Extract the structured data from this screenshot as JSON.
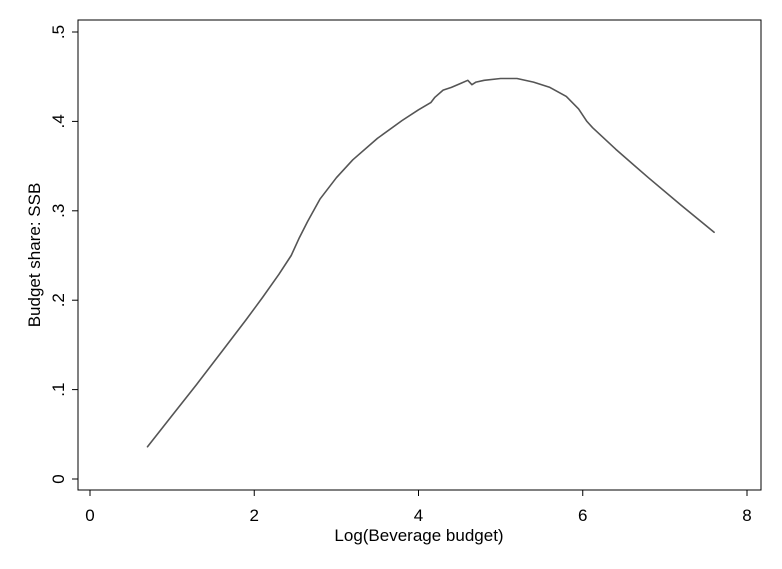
{
  "chart_data": {
    "type": "line",
    "xlabel": "Log(Beverage budget)",
    "ylabel": "Budget share: SSB",
    "xlim": [
      0,
      8
    ],
    "ylim": [
      0,
      0.5
    ],
    "x_ticks": [
      0,
      2,
      4,
      6,
      8
    ],
    "x_tick_labels": [
      "0",
      "2",
      "4",
      "6",
      "8"
    ],
    "y_ticks": [
      0,
      0.1,
      0.2,
      0.3,
      0.4,
      0.5
    ],
    "y_tick_labels": [
      "0",
      ".1",
      ".2",
      ".3",
      ".4",
      ".5"
    ],
    "grid": false,
    "legend": "none",
    "line_color": "#555555",
    "series": [
      {
        "x": [
          0.7,
          1.0,
          1.3,
          1.6,
          1.9,
          2.1,
          2.3,
          2.45,
          2.55,
          2.65,
          2.8,
          3.0,
          3.2,
          3.5,
          3.8,
          4.0,
          4.15,
          4.2,
          4.3,
          4.4,
          4.5,
          4.6,
          4.65,
          4.7,
          4.8,
          5.0,
          5.2,
          5.4,
          5.6,
          5.8,
          5.95,
          6.05,
          6.12,
          6.4,
          6.8,
          7.2,
          7.6
        ],
        "y": [
          0.036,
          0.071,
          0.106,
          0.142,
          0.178,
          0.203,
          0.229,
          0.25,
          0.27,
          0.288,
          0.313,
          0.337,
          0.357,
          0.381,
          0.401,
          0.413,
          0.421,
          0.427,
          0.435,
          0.438,
          0.442,
          0.446,
          0.441,
          0.444,
          0.446,
          0.448,
          0.448,
          0.444,
          0.438,
          0.428,
          0.414,
          0.4,
          0.393,
          0.369,
          0.337,
          0.306,
          0.276
        ]
      }
    ]
  }
}
